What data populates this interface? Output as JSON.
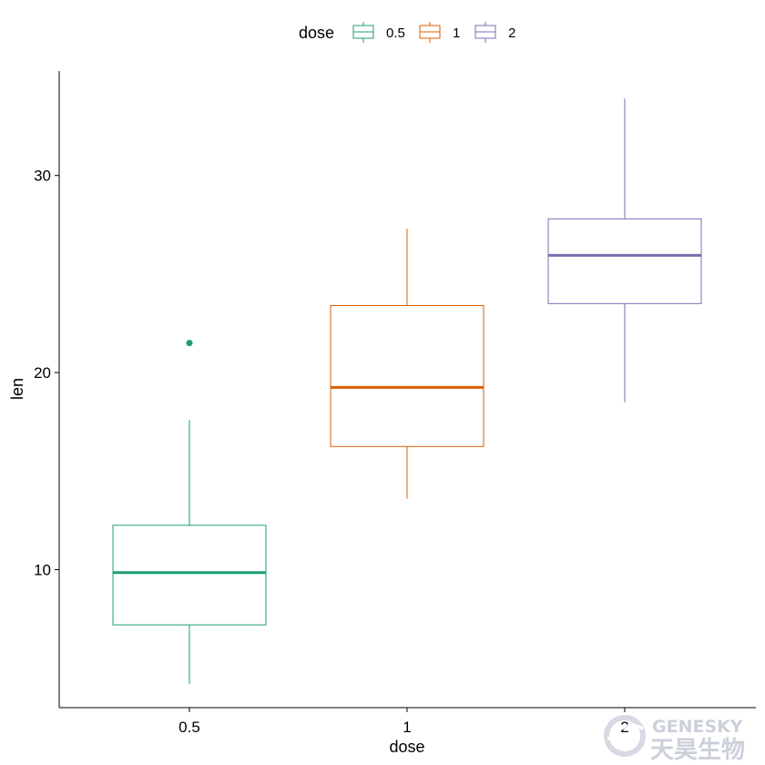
{
  "chart_data": {
    "type": "box",
    "xlabel": "dose",
    "ylabel": "len",
    "categories": [
      "0.5",
      "1",
      "2"
    ],
    "ylim": [
      3,
      35.3
    ],
    "yticks": [
      10,
      20,
      30
    ],
    "grid": false,
    "legend": {
      "title": "dose",
      "placement": "top",
      "entries": [
        "0.5",
        "1",
        "2"
      ]
    },
    "colors": [
      "#1b9e77",
      "#d95f02",
      "#7570b3"
    ],
    "series": [
      {
        "name": "0.5",
        "min": 4.2,
        "q1": 7.2,
        "median": 9.85,
        "q3": 12.25,
        "max": 17.6,
        "outliers": [
          21.5
        ]
      },
      {
        "name": "1",
        "min": 13.6,
        "q1": 16.25,
        "median": 19.25,
        "q3": 23.4,
        "max": 27.3,
        "outliers": []
      },
      {
        "name": "2",
        "min": 18.5,
        "q1": 23.5,
        "median": 25.95,
        "q3": 27.8,
        "max": 33.9,
        "outliers": []
      }
    ]
  },
  "watermark": {
    "latin": "GENESKY",
    "chinese": "天昊生物"
  }
}
